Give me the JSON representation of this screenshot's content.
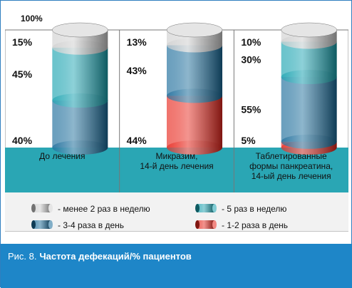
{
  "chart_data": {
    "type": "bar",
    "stacked": true,
    "top_label": "100%",
    "categories": [
      [
        "До лечения"
      ],
      [
        "Микразим,",
        "14-й день лечения"
      ],
      [
        "Таблетированные",
        "формы панкреатина,",
        "14-ый день лечения"
      ]
    ],
    "series": [
      {
        "name": "- 1-2 раза в день",
        "color": "#e8281e",
        "values": [
          0,
          44,
          5
        ]
      },
      {
        "name": "- 3-4 раза в день",
        "color": "#1a6b9a",
        "values": [
          40,
          43,
          55
        ]
      },
      {
        "name": "- 5 раз в неделю",
        "color": "#1aa3b0",
        "values": [
          45,
          0,
          30
        ]
      },
      {
        "name": "- менее 2 раз в неделю",
        "color": "#d0d0d0",
        "values": [
          15,
          13,
          10
        ]
      }
    ],
    "bar_labels": [
      [
        "15%",
        "45%",
        "40%"
      ],
      [
        "13%",
        "43%",
        "44%"
      ],
      [
        "10%",
        "30%",
        "55%",
        "5%"
      ]
    ],
    "legend_order": [
      3,
      1,
      2,
      0
    ]
  },
  "caption": {
    "prefix": "Рис. 8.",
    "title": "Частота дефекаций/% пациентов"
  },
  "colors": {
    "label_band": "#2aa6b4",
    "legend_bg": "#f2f2f2",
    "caption_bg": "#1e86c8",
    "border": "#2f7fc0"
  }
}
